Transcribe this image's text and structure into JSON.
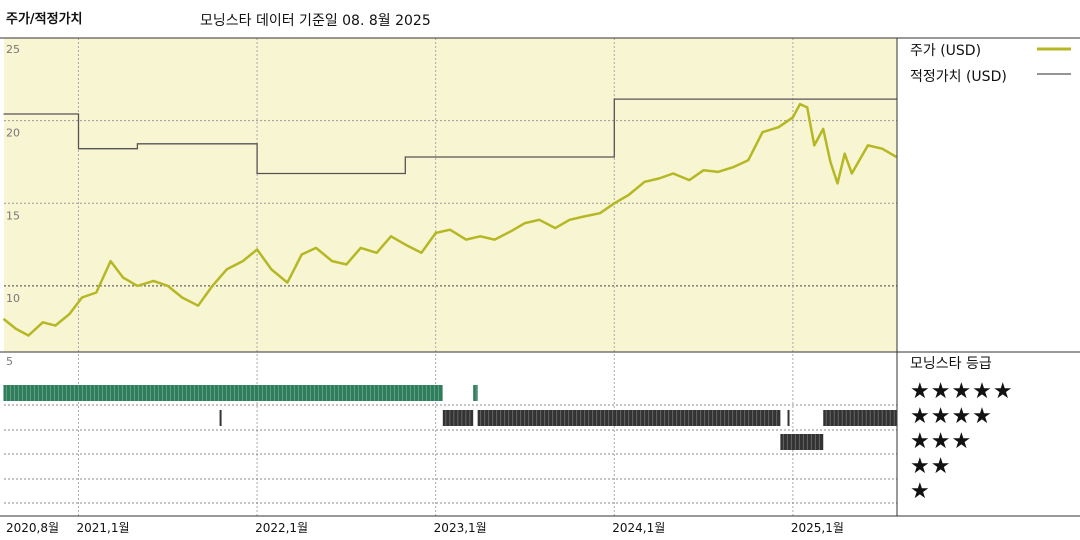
{
  "header": {
    "left_title": "주가/적정가치",
    "subtitle": "모닝스타 데이터 기준일 08. 8월 2025"
  },
  "legend": {
    "price_label": "주가 (USD)",
    "fair_value_label": "적정가치 (USD)",
    "price_color": "#b5b824",
    "fair_value_color": "#555555"
  },
  "rating": {
    "title": "모닝스타 등급",
    "levels": [
      "★★★★★",
      "★★★★",
      "★★★",
      "★★",
      "★"
    ],
    "colors": {
      "5": "#2e7d5b",
      "4": "#333333",
      "3": "#333333"
    }
  },
  "chart_data": {
    "type": "line",
    "xlabel": "",
    "ylabel": "",
    "ylim": [
      6,
      25
    ],
    "yticks": [
      25,
      20,
      15,
      10
    ],
    "rating_axis_top_label": "5",
    "x_range": [
      "2020-08",
      "2025-08"
    ],
    "xtick_labels": [
      "2020,8월",
      "2021,1월",
      "2022,1월",
      "2023,1월",
      "2024,1월",
      "2025,1월"
    ],
    "xtick_positions": [
      2020.583,
      2021.0,
      2022.0,
      2023.0,
      2024.0,
      2025.0
    ],
    "plot_background": "#f8f5d2",
    "series": [
      {
        "name": "주가 (USD)",
        "x": [
          2020.58,
          2020.65,
          2020.72,
          2020.8,
          2020.87,
          2020.95,
          2021.02,
          2021.1,
          2021.18,
          2021.25,
          2021.33,
          2021.42,
          2021.5,
          2021.58,
          2021.67,
          2021.75,
          2021.83,
          2021.92,
          2022.0,
          2022.08,
          2022.17,
          2022.25,
          2022.33,
          2022.42,
          2022.5,
          2022.58,
          2022.67,
          2022.75,
          2022.83,
          2022.92,
          2023.0,
          2023.08,
          2023.17,
          2023.25,
          2023.33,
          2023.42,
          2023.5,
          2023.58,
          2023.67,
          2023.75,
          2023.83,
          2023.92,
          2024.0,
          2024.08,
          2024.17,
          2024.25,
          2024.33,
          2024.42,
          2024.5,
          2024.58,
          2024.67,
          2024.75,
          2024.83,
          2024.92,
          2025.0,
          2025.04,
          2025.08,
          2025.12,
          2025.17,
          2025.21,
          2025.25,
          2025.29,
          2025.33,
          2025.42,
          2025.5,
          2025.58
        ],
        "y": [
          8.0,
          7.4,
          7.0,
          7.8,
          7.6,
          8.3,
          9.3,
          9.6,
          11.5,
          10.5,
          10.0,
          10.3,
          10.0,
          9.3,
          8.8,
          10.0,
          11.0,
          11.5,
          12.2,
          11.0,
          10.2,
          11.9,
          12.3,
          11.5,
          11.3,
          12.3,
          12.0,
          13.0,
          12.5,
          12.0,
          13.2,
          13.4,
          12.8,
          13.0,
          12.8,
          13.3,
          13.8,
          14.0,
          13.5,
          14.0,
          14.2,
          14.4,
          15.0,
          15.5,
          16.3,
          16.5,
          16.8,
          16.4,
          17.0,
          16.9,
          17.2,
          17.6,
          19.3,
          19.6,
          20.2,
          21.0,
          20.8,
          18.5,
          19.5,
          17.5,
          16.2,
          18.0,
          16.8,
          18.5,
          18.3,
          17.8
        ]
      },
      {
        "name": "적정가치 (USD)",
        "x": [
          2020.58,
          2021.0,
          2021.0,
          2021.33,
          2021.33,
          2022.0,
          2022.0,
          2022.0,
          2022.83,
          2022.83,
          2024.0,
          2024.0,
          2025.58
        ],
        "y": [
          20.4,
          20.4,
          18.3,
          18.3,
          18.6,
          18.6,
          18.6,
          16.8,
          16.8,
          17.8,
          17.8,
          21.3,
          21.3
        ]
      }
    ],
    "rating_segments": [
      {
        "stars": 5,
        "from": 2020.58,
        "to": 2023.04
      },
      {
        "stars": 5,
        "from": 2023.21,
        "to": 2023.235
      },
      {
        "stars": 4,
        "from": 2021.79,
        "to": 2021.8
      },
      {
        "stars": 4,
        "from": 2023.04,
        "to": 2023.21
      },
      {
        "stars": 4,
        "from": 2023.235,
        "to": 2024.93
      },
      {
        "stars": 4,
        "from": 2024.97,
        "to": 2024.98
      },
      {
        "stars": 4,
        "from": 2025.17,
        "to": 2025.58
      },
      {
        "stars": 3,
        "from": 2024.93,
        "to": 2025.17
      }
    ]
  }
}
